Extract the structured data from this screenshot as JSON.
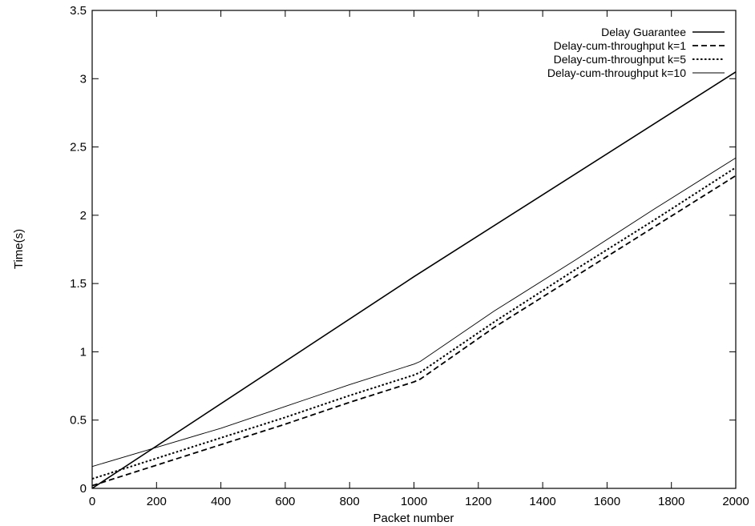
{
  "chart_data": {
    "type": "line",
    "title": "",
    "xlabel": "Packet number",
    "ylabel": "Time(s)",
    "xlim": [
      0,
      2000
    ],
    "ylim": [
      0,
      3.5
    ],
    "xticks": [
      0,
      200,
      400,
      600,
      800,
      1000,
      1200,
      1400,
      1600,
      1800,
      2000
    ],
    "yticks": [
      0,
      0.5,
      1,
      1.5,
      2,
      2.5,
      3,
      3.5
    ],
    "xtick_labels": [
      "0",
      "200",
      "400",
      "600",
      "800",
      "1000",
      "1200",
      "1400",
      "1600",
      "1800",
      "2000"
    ],
    "ytick_labels": [
      "0",
      "0.5",
      "1",
      "1.5",
      "2",
      "2.5",
      "3",
      "3.5"
    ],
    "grid": false,
    "legend_position": "top-right",
    "series": [
      {
        "name": "Delay Guarantee",
        "style": "solid",
        "x": [
          0,
          1000,
          2000
        ],
        "y": [
          0,
          1.55,
          3.05
        ]
      },
      {
        "name": "Delay-cum-throughput k=1",
        "style": "dashed",
        "x": [
          0,
          200,
          400,
          600,
          800,
          1000,
          1020,
          1250,
          1500,
          1750,
          2000
        ],
        "y": [
          0.02,
          0.17,
          0.32,
          0.47,
          0.63,
          0.78,
          0.8,
          1.18,
          1.55,
          1.92,
          2.29
        ]
      },
      {
        "name": "Delay-cum-throughput k=5",
        "style": "dotted",
        "x": [
          0,
          200,
          400,
          600,
          800,
          1000,
          1020,
          1250,
          1500,
          1750,
          2000
        ],
        "y": [
          0.07,
          0.22,
          0.37,
          0.52,
          0.68,
          0.83,
          0.85,
          1.22,
          1.6,
          1.97,
          2.35
        ]
      },
      {
        "name": "Delay-cum-throughput k=10",
        "style": "thin",
        "x": [
          0,
          200,
          400,
          600,
          800,
          1000,
          1020,
          1250,
          1500,
          1750,
          2000
        ],
        "y": [
          0.16,
          0.3,
          0.44,
          0.6,
          0.76,
          0.91,
          0.93,
          1.3,
          1.67,
          2.05,
          2.42
        ]
      }
    ]
  }
}
